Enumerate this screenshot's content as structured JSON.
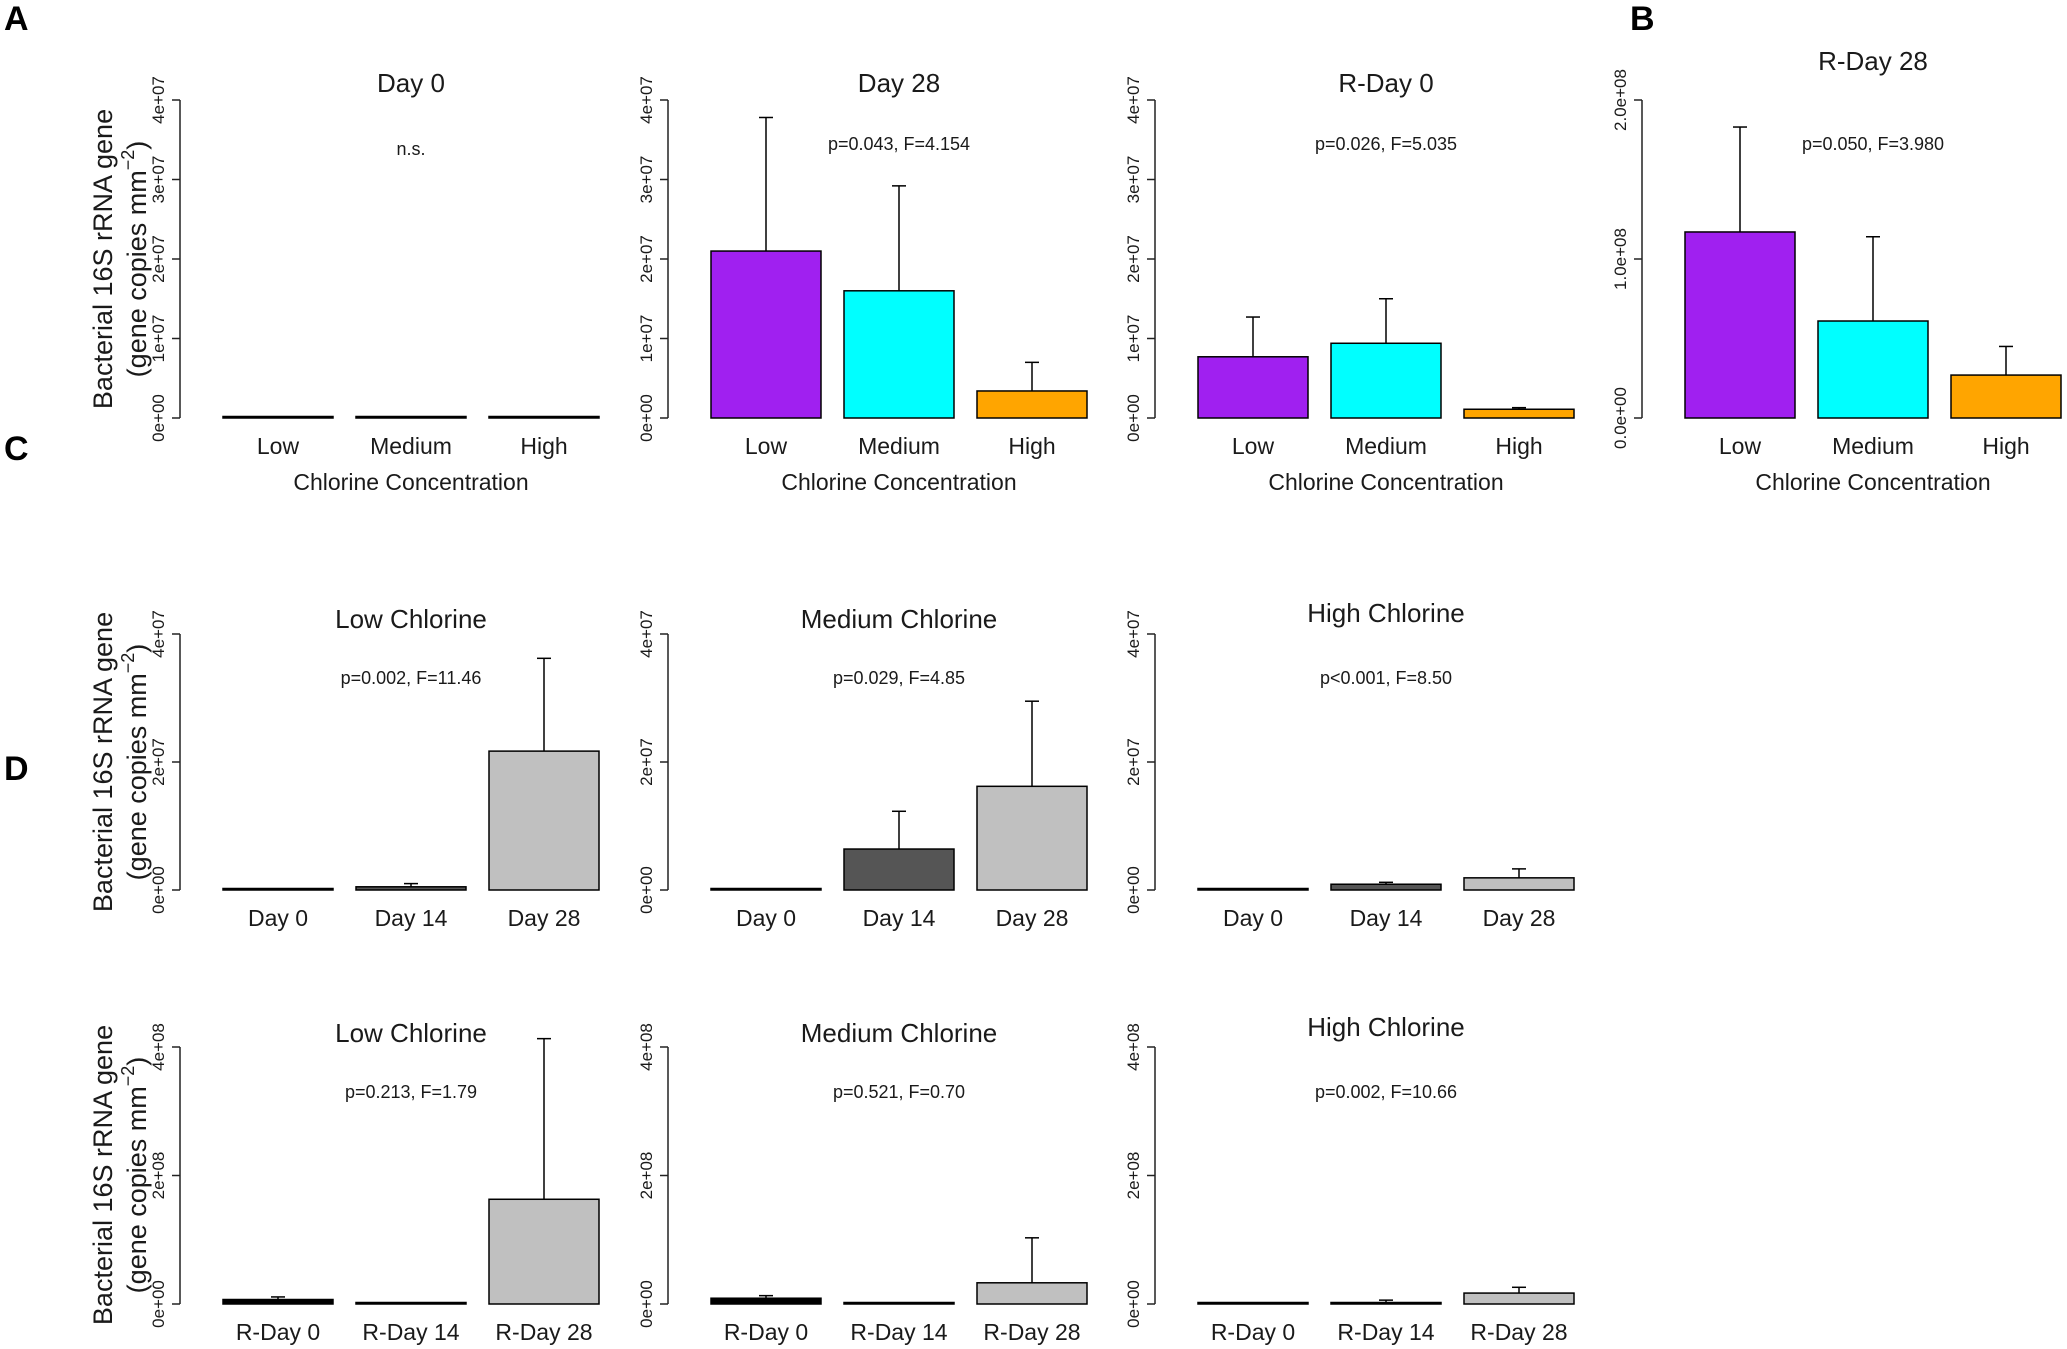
{
  "ylabel": {
    "line1": "Bacterial 16S rRNA gene",
    "line2": "(gene copies  mm",
    "sup": "−2",
    "close": ")"
  },
  "panel_labels": [
    "A",
    "B",
    "C",
    "D"
  ],
  "chart_data": [
    {
      "id": "a-day0",
      "type": "bar",
      "title": "Day 0",
      "stat": "n.s.",
      "xlabel": "Chlorine Concentration",
      "categories": [
        "Low",
        "Medium",
        "High"
      ],
      "values": [
        0,
        0,
        0
      ],
      "error_upper": [
        0,
        0,
        0
      ],
      "colors": [
        "#a020f0",
        "#00ffff",
        "#ffa500"
      ],
      "ylim": [
        0,
        40000000
      ],
      "yticks": [
        "0e+00",
        "1e+07",
        "2e+07",
        "3e+07",
        "4e+07"
      ],
      "ytick_values": [
        0,
        10000000,
        20000000,
        30000000,
        40000000
      ]
    },
    {
      "id": "a-day28",
      "type": "bar",
      "title": "Day 28",
      "stat": "p=0.043, F=4.154",
      "xlabel": "Chlorine Concentration",
      "categories": [
        "Low",
        "Medium",
        "High"
      ],
      "values": [
        21000000,
        16000000,
        3400000
      ],
      "error_upper": [
        37800000,
        29200000,
        7000000
      ],
      "colors": [
        "#a020f0",
        "#00ffff",
        "#ffa500"
      ],
      "ylim": [
        0,
        40000000
      ],
      "yticks": [
        "0e+00",
        "1e+07",
        "2e+07",
        "3e+07",
        "4e+07"
      ],
      "ytick_values": [
        0,
        10000000,
        20000000,
        30000000,
        40000000
      ]
    },
    {
      "id": "a-rday0",
      "type": "bar",
      "title": "R-Day 0",
      "stat": "p=0.026, F=5.035",
      "xlabel": "Chlorine Concentration",
      "categories": [
        "Low",
        "Medium",
        "High"
      ],
      "values": [
        7700000,
        9400000,
        1100000
      ],
      "error_upper": [
        12700000,
        15000000,
        1300000
      ],
      "colors": [
        "#a020f0",
        "#00ffff",
        "#ffa500"
      ],
      "ylim": [
        0,
        40000000
      ],
      "yticks": [
        "0e+00",
        "1e+07",
        "2e+07",
        "3e+07",
        "4e+07"
      ],
      "ytick_values": [
        0,
        10000000,
        20000000,
        30000000,
        40000000
      ]
    },
    {
      "id": "b-rday28",
      "type": "bar",
      "title": "R-Day 28",
      "stat": "p=0.050, F=3.980",
      "xlabel": "Chlorine Concentration",
      "categories": [
        "Low",
        "Medium",
        "High"
      ],
      "values": [
        117000000,
        61000000,
        27000000
      ],
      "error_upper": [
        183000000,
        114000000,
        45000000
      ],
      "colors": [
        "#a020f0",
        "#00ffff",
        "#ffa500"
      ],
      "ylim": [
        0,
        200000000
      ],
      "yticks": [
        "0.0e+00",
        "1.0e+08",
        "2.0e+08"
      ],
      "ytick_values": [
        0,
        100000000,
        200000000
      ]
    },
    {
      "id": "c-low",
      "type": "bar",
      "title": "Low Chlorine",
      "stat": "p=0.002, F=11.46",
      "xlabel": "",
      "categories": [
        "Day 0",
        "Day 14",
        "Day 28"
      ],
      "values": [
        0,
        500000,
        21700000
      ],
      "error_upper": [
        0,
        1000000,
        36200000
      ],
      "colors": [
        "#000000",
        "#555555",
        "#c0c0c0"
      ],
      "ylim": [
        0,
        40000000
      ],
      "yticks": [
        "0e+00",
        "2e+07",
        "4e+07"
      ],
      "ytick_values": [
        0,
        20000000,
        40000000
      ]
    },
    {
      "id": "c-medium",
      "type": "bar",
      "title": "Medium Chlorine",
      "stat": "p=0.029, F=4.85",
      "xlabel": "",
      "categories": [
        "Day 0",
        "Day 14",
        "Day 28"
      ],
      "values": [
        0,
        6400000,
        16200000
      ],
      "error_upper": [
        0,
        12300000,
        29500000
      ],
      "colors": [
        "#000000",
        "#555555",
        "#c0c0c0"
      ],
      "ylim": [
        0,
        40000000
      ],
      "yticks": [
        "0e+00",
        "2e+07",
        "4e+07"
      ],
      "ytick_values": [
        0,
        20000000,
        40000000
      ]
    },
    {
      "id": "c-high",
      "type": "bar",
      "title": "High Chlorine",
      "stat": "p<0.001, F=8.50",
      "xlabel": "",
      "categories": [
        "Day 0",
        "Day 14",
        "Day 28"
      ],
      "values": [
        0,
        900000,
        1900000
      ],
      "error_upper": [
        0,
        1200000,
        3300000
      ],
      "colors": [
        "#000000",
        "#555555",
        "#c0c0c0"
      ],
      "ylim": [
        0,
        40000000
      ],
      "yticks": [
        "0e+00",
        "2e+07",
        "4e+07"
      ],
      "ytick_values": [
        0,
        20000000,
        40000000
      ]
    },
    {
      "id": "d-low",
      "type": "bar",
      "title": "Low Chlorine",
      "stat": "p=0.213, F=1.79",
      "xlabel": "",
      "categories": [
        "R-Day 0",
        "R-Day 14",
        "R-Day 28"
      ],
      "values": [
        7000000,
        0,
        163000000
      ],
      "error_upper": [
        11000000,
        0,
        413000000
      ],
      "colors": [
        "#000000",
        "#555555",
        "#c0c0c0"
      ],
      "ylim": [
        0,
        400000000
      ],
      "yticks": [
        "0e+00",
        "2e+08",
        "4e+08"
      ],
      "ytick_values": [
        0,
        200000000,
        400000000
      ]
    },
    {
      "id": "d-medium",
      "type": "bar",
      "title": "Medium Chlorine",
      "stat": "p=0.521, F=0.70",
      "xlabel": "",
      "categories": [
        "R-Day 0",
        "R-Day 14",
        "R-Day 28"
      ],
      "values": [
        9000000,
        0,
        33000000
      ],
      "error_upper": [
        13000000,
        0,
        103000000
      ],
      "colors": [
        "#000000",
        "#555555",
        "#c0c0c0"
      ],
      "ylim": [
        0,
        400000000
      ],
      "yticks": [
        "0e+00",
        "2e+08",
        "4e+08"
      ],
      "ytick_values": [
        0,
        200000000,
        400000000
      ]
    },
    {
      "id": "d-high",
      "type": "bar",
      "title": "High Chlorine",
      "stat": "p=0.002, F=10.66",
      "xlabel": "",
      "categories": [
        "R-Day 0",
        "R-Day 14",
        "R-Day 28"
      ],
      "values": [
        0,
        2000000,
        17000000
      ],
      "error_upper": [
        0,
        6000000,
        26000000
      ],
      "colors": [
        "#000000",
        "#555555",
        "#c0c0c0"
      ],
      "ylim": [
        0,
        400000000
      ],
      "yticks": [
        "0e+00",
        "2e+08",
        "4e+08"
      ],
      "ytick_values": [
        0,
        200000000,
        400000000
      ]
    }
  ]
}
